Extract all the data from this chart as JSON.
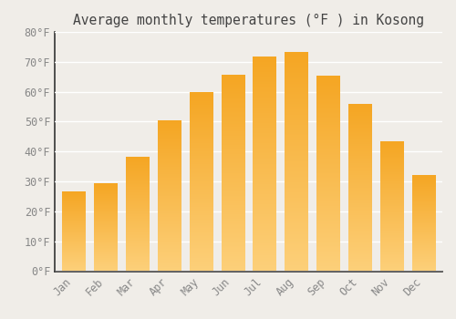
{
  "title": "Average monthly temperatures (°F ) in Kosong",
  "months": [
    "Jan",
    "Feb",
    "Mar",
    "Apr",
    "May",
    "Jun",
    "Jul",
    "Aug",
    "Sep",
    "Oct",
    "Nov",
    "Dec"
  ],
  "values": [
    26.5,
    29,
    38,
    50,
    59.5,
    65.5,
    71.5,
    73,
    65,
    55.5,
    43,
    32
  ],
  "bar_color": "#F5A623",
  "bar_color_light": "#FDD07A",
  "ylim": [
    0,
    80
  ],
  "yticks": [
    0,
    10,
    20,
    30,
    40,
    50,
    60,
    70,
    80
  ],
  "ytick_labels": [
    "0°F",
    "10°F",
    "20°F",
    "30°F",
    "40°F",
    "50°F",
    "60°F",
    "70°F",
    "80°F"
  ],
  "background_color": "#f0ede8",
  "grid_color": "#ffffff",
  "title_fontsize": 10.5,
  "tick_fontsize": 8.5,
  "font_family": "monospace",
  "tick_color": "#888888",
  "spine_color": "#333333"
}
